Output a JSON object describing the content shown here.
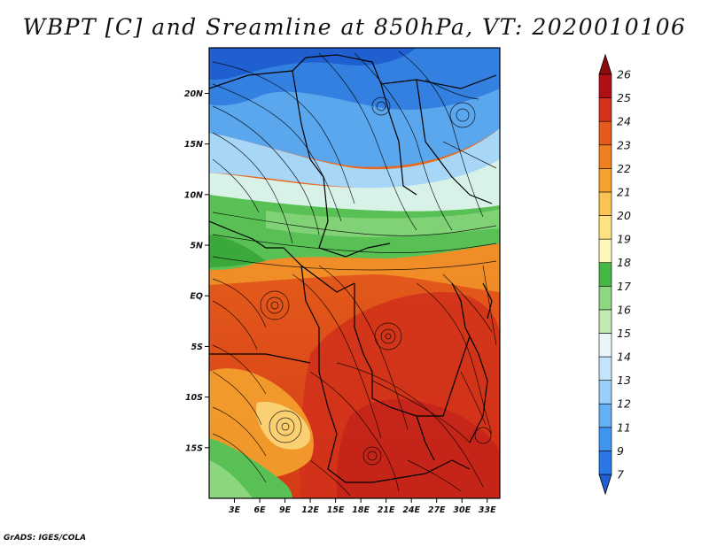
{
  "title": "WBPT [C] and Sreamline at 850hPa, VT: 2020010106",
  "footer": "GrADS: IGES/COLA",
  "map": {
    "lat_labels": [
      "20N",
      "15N",
      "10N",
      "5N",
      "EQ",
      "5S",
      "10S",
      "15S"
    ],
    "lon_labels": [
      "3E",
      "6E",
      "9E",
      "12E",
      "15E",
      "18E",
      "21E",
      "24E",
      "27E",
      "30E",
      "33E"
    ],
    "lat_range": [
      -20,
      24.5
    ],
    "lon_range": [
      0,
      34.5
    ]
  },
  "colorbar": {
    "levels": [
      "7",
      "9",
      "11",
      "12",
      "13",
      "14",
      "15",
      "16",
      "17",
      "18",
      "19",
      "20",
      "21",
      "22",
      "23",
      "24",
      "25",
      "26"
    ],
    "colors": [
      "#1f5fd0",
      "#2a78e8",
      "#3f96f0",
      "#64b0f5",
      "#98cef9",
      "#c3e4fb",
      "#e8f6f9",
      "#c2ebb2",
      "#8cd77f",
      "#45b744",
      "#fdf7b9",
      "#fde27f",
      "#fbc452",
      "#f7a12d",
      "#f07f1f",
      "#e55a1b",
      "#d3321c",
      "#b00f14",
      "#8c0b0f"
    ]
  },
  "colors": {
    "cold": "#2060d8",
    "mid": "#45b744",
    "warm": "#e55a1b",
    "hot": "#c81e12"
  }
}
